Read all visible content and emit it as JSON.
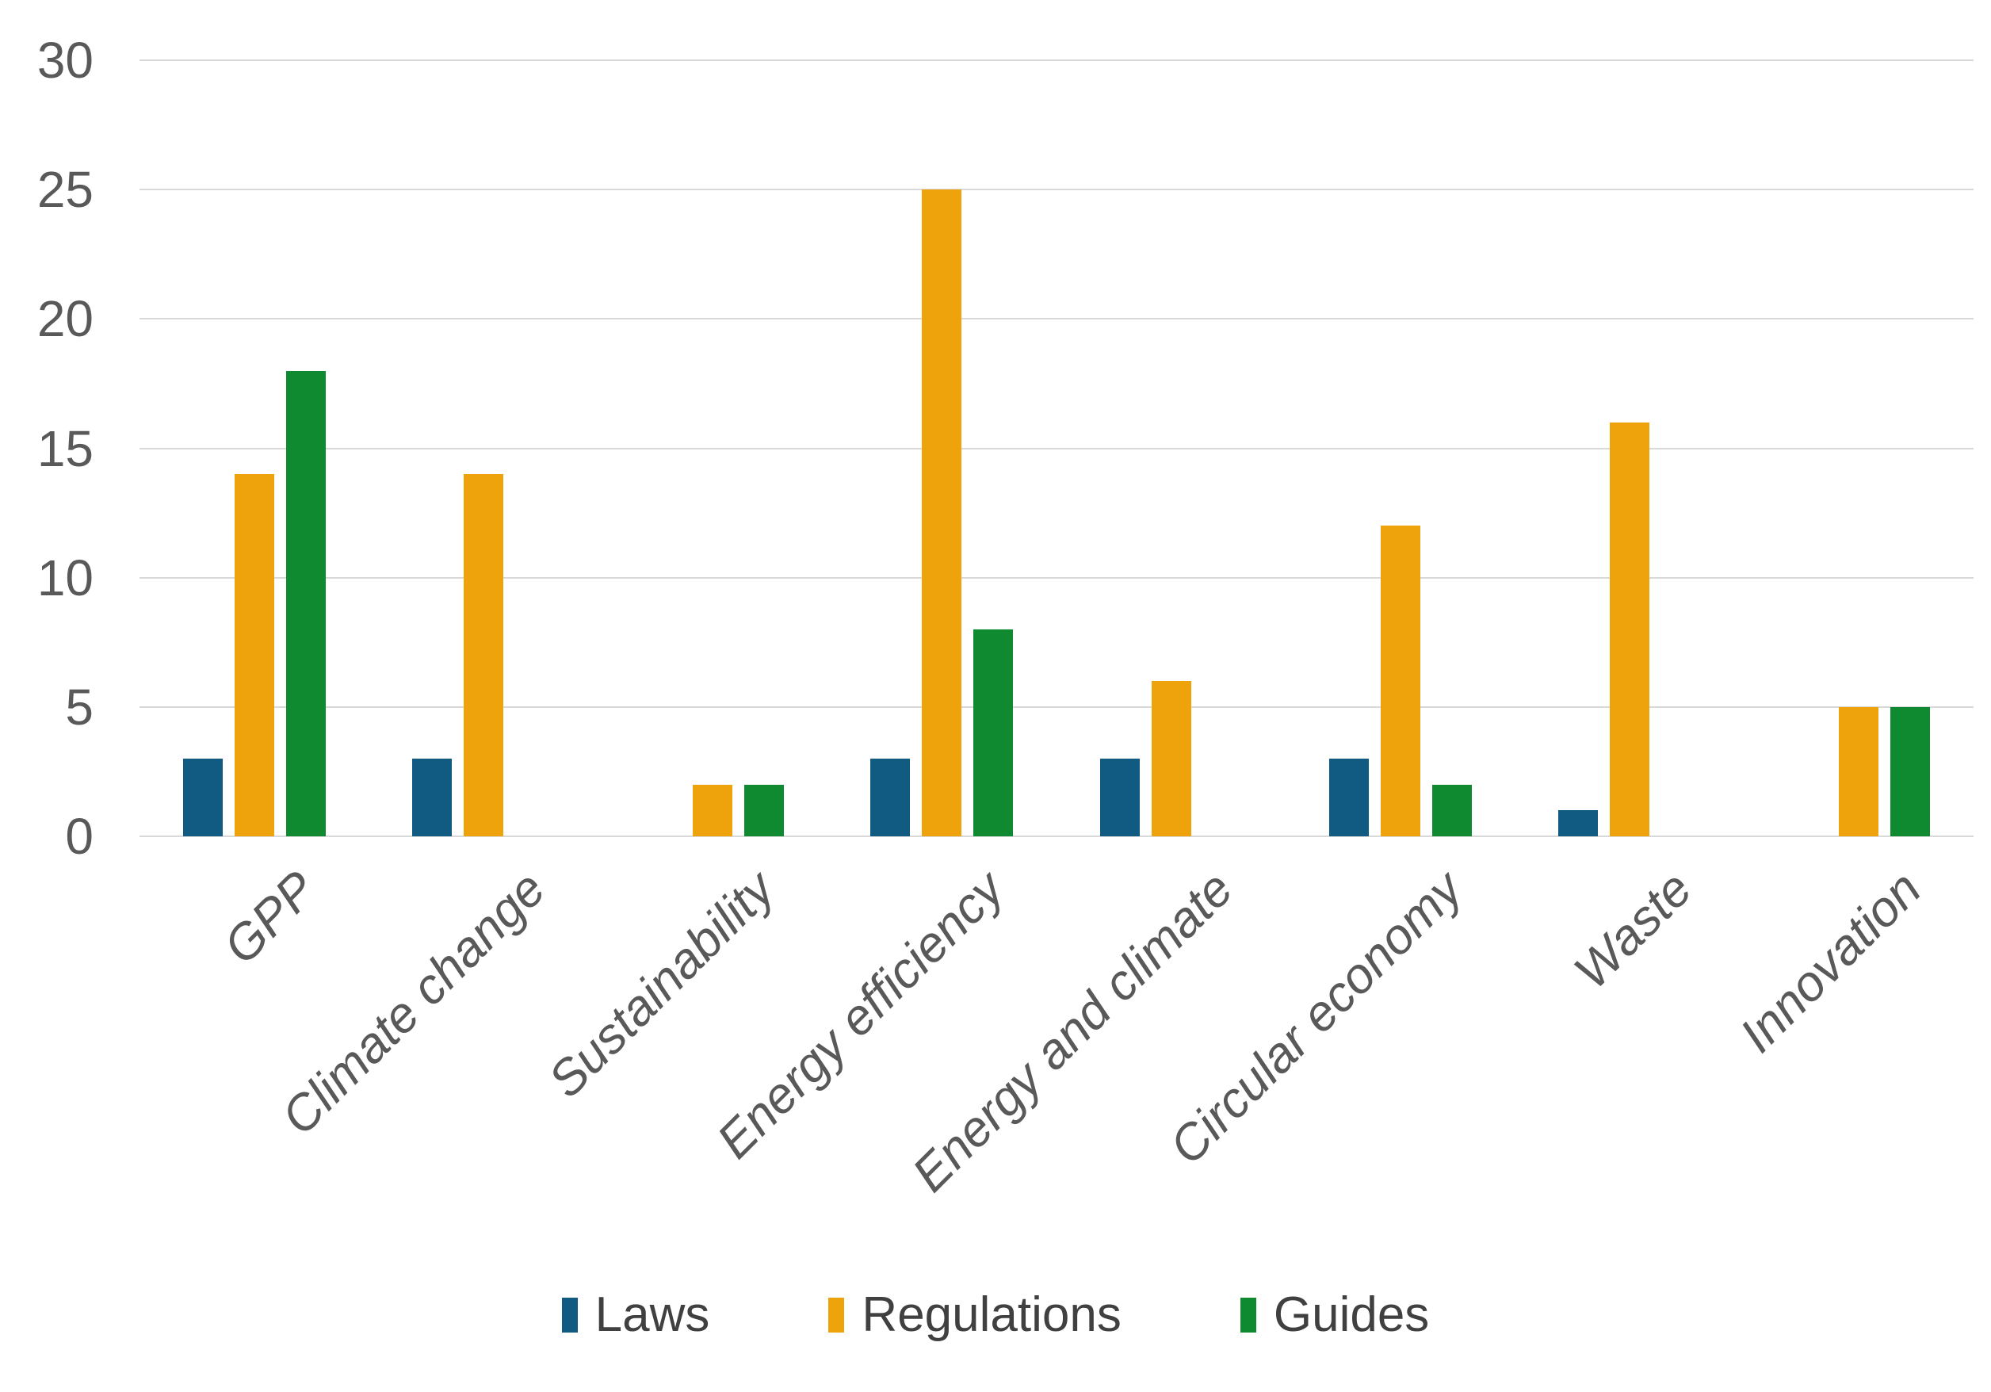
{
  "chart_data": {
    "type": "bar",
    "title": "",
    "xlabel": "",
    "ylabel": "",
    "categories": [
      "GPP",
      "Climate change",
      "Sustainability",
      "Energy efficiency",
      "Energy and climate",
      "Circular economy",
      "Waste",
      "Innovation"
    ],
    "series": [
      {
        "name": "Laws",
        "color": "#115A82",
        "values": [
          3,
          3,
          0,
          3,
          3,
          3,
          1,
          0
        ]
      },
      {
        "name": "Regulations",
        "color": "#EEA20C",
        "values": [
          14,
          14,
          2,
          25,
          6,
          12,
          16,
          5
        ]
      },
      {
        "name": "Guides",
        "color": "#0F8A30",
        "values": [
          18,
          0,
          2,
          8,
          0,
          2,
          0,
          5
        ]
      }
    ],
    "ylim": [
      0,
      30
    ],
    "yticks": [
      0,
      5,
      10,
      15,
      20,
      25,
      30
    ],
    "grid": true,
    "gridline_color": "#D9D9D9",
    "axis_text_color": "#595959",
    "legend_text_color": "#404040",
    "legend_position": "bottom",
    "x_labels_rotation_deg": 45,
    "x_labels_italic": true
  }
}
